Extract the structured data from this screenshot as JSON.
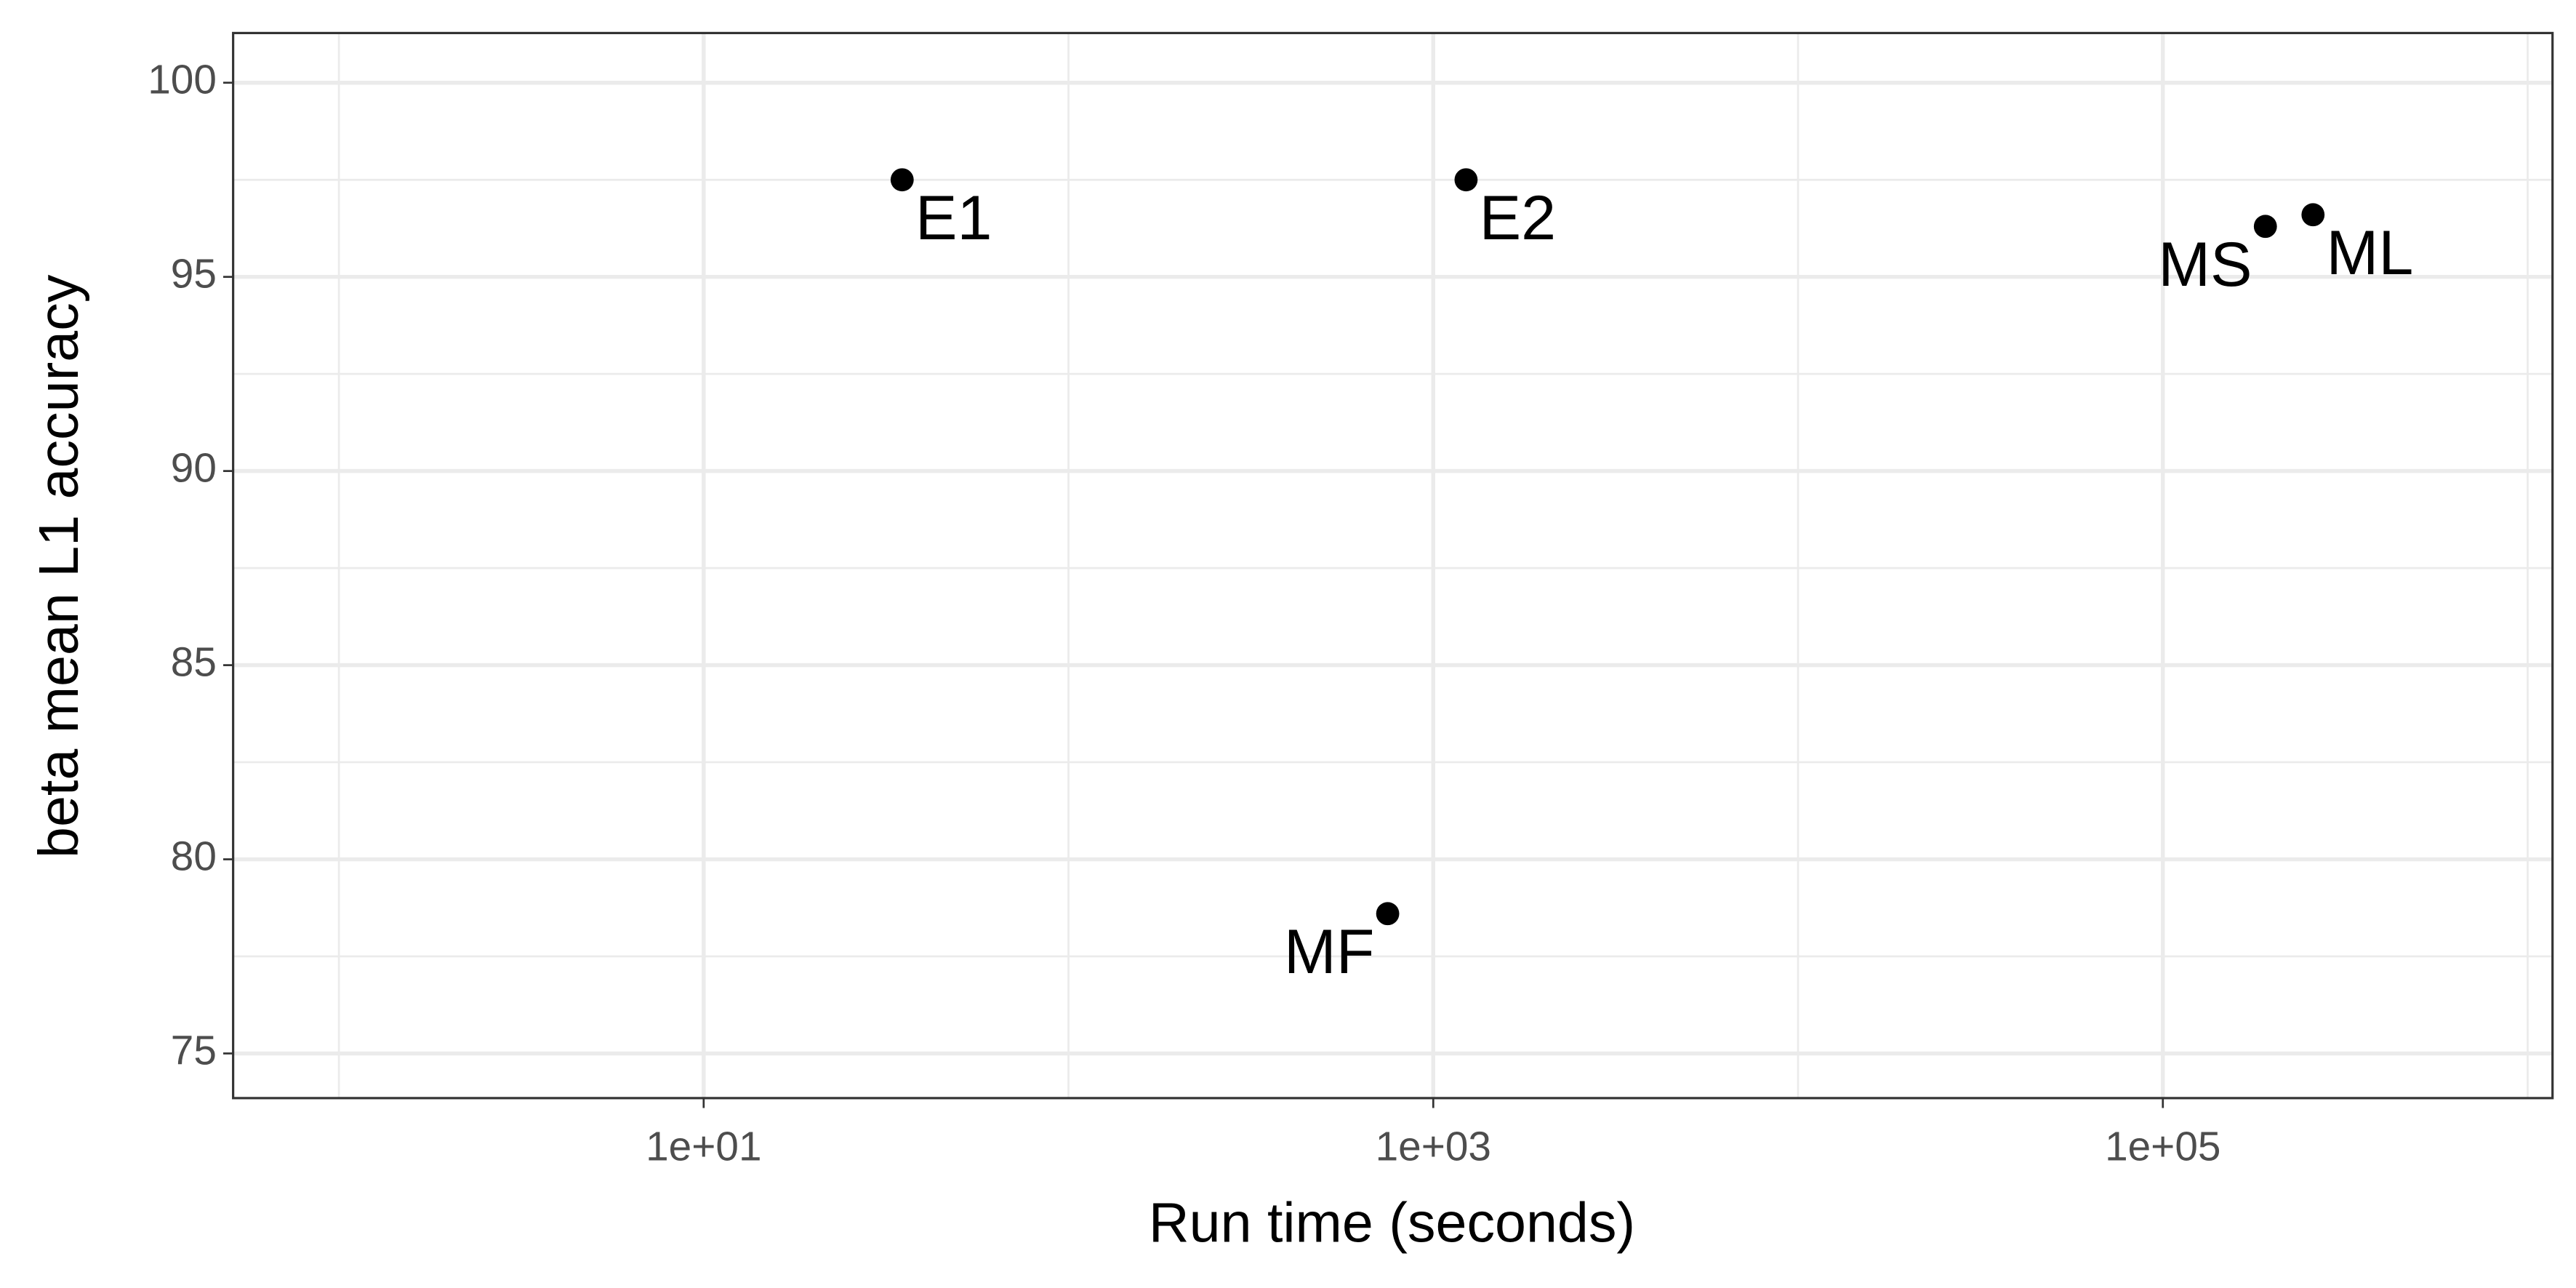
{
  "chart_data": {
    "type": "scatter",
    "x_label": "Run time (seconds)",
    "y_label": "beta mean L1 accuracy",
    "xscale": "log",
    "grid": true,
    "color": "#000000",
    "xlim": [
      0.513,
      1170000
    ],
    "ylim": [
      73.85,
      101.28
    ],
    "xticks": [
      {
        "value": 10,
        "label": "1e+01"
      },
      {
        "value": 1000,
        "label": "1e+03"
      },
      {
        "value": 100000,
        "label": "1e+05"
      }
    ],
    "xminorticks": [
      1,
      100,
      10000,
      1000000
    ],
    "yticks": [
      75,
      80,
      85,
      90,
      95,
      100
    ],
    "yminorticks": [
      77.5,
      82.5,
      87.5,
      92.5,
      97.5
    ],
    "labels": [
      "E1",
      "E2",
      "MF",
      "MS",
      "ML"
    ],
    "x": [
      35,
      1230,
      750,
      191000,
      258000
    ],
    "values": [
      97.5,
      97.5,
      78.6,
      96.3,
      96.6
    ]
  }
}
